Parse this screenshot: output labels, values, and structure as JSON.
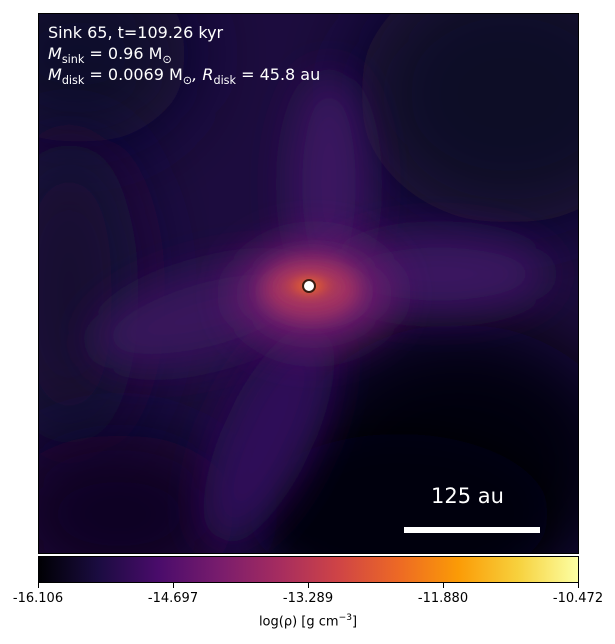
{
  "chart_data": {
    "type": "heatmap",
    "title": "",
    "annotations": {
      "line1": "Sink 65, t=109.26 kyr",
      "m_sink_label": "M",
      "m_sink_sub": "sink",
      "m_sink_value": " = 0.96 M",
      "m_sink_unit_sub": "⊙",
      "m_disk_label": "M",
      "m_disk_sub": "disk",
      "m_disk_value": " = 0.0069 M",
      "m_disk_unit_sub": "⊙",
      "r_disk_label": ", R",
      "r_disk_sub": "disk",
      "r_disk_value": " = 45.8 au"
    },
    "scale_bar_label": "125 au",
    "colorbar": {
      "label_pre": "log(ρ) [g cm",
      "label_sup": "−3",
      "label_post": "]",
      "min": -16.106,
      "max": -10.472,
      "ticks": [
        "-16.106",
        "-14.697",
        "-13.289",
        "-11.880",
        "-10.472"
      ],
      "colormap": "inferno"
    },
    "sink_marker": "white circle at sink position"
  }
}
